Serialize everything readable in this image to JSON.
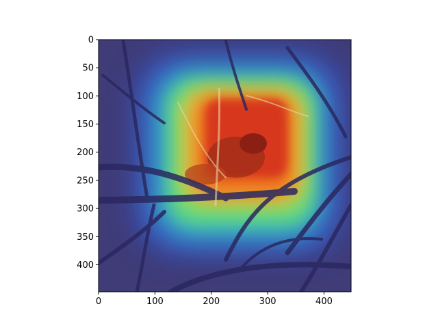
{
  "figure": {
    "type": "image-with-heatmap-overlay",
    "background_color": "#ffffff",
    "axes_color": "#000000"
  },
  "chart_data": {
    "type": "heatmap",
    "title": "",
    "xlabel": "",
    "ylabel": "",
    "xlim": [
      0,
      448
    ],
    "ylim": [
      448,
      0
    ],
    "y_axis_inverted": true,
    "x_ticks": [
      0,
      100,
      200,
      300,
      400
    ],
    "y_ticks": [
      0,
      50,
      100,
      150,
      200,
      250,
      300,
      350,
      400
    ],
    "x_tick_labels": [
      "0",
      "100",
      "200",
      "300",
      "400"
    ],
    "y_tick_labels": [
      "0",
      "50",
      "100",
      "150",
      "200",
      "250",
      "300",
      "350",
      "400"
    ],
    "grid": false,
    "colormap": "jet",
    "overlay": {
      "hot_region_center": [
        295,
        200
      ],
      "hot_region_extent": {
        "x": [
          160,
          380
        ],
        "y": [
          90,
          290
        ]
      },
      "activated_region_extent": {
        "x": [
          90,
          430
        ],
        "y": [
          60,
          360
        ]
      }
    },
    "image_subject": "bird among bare branches"
  }
}
